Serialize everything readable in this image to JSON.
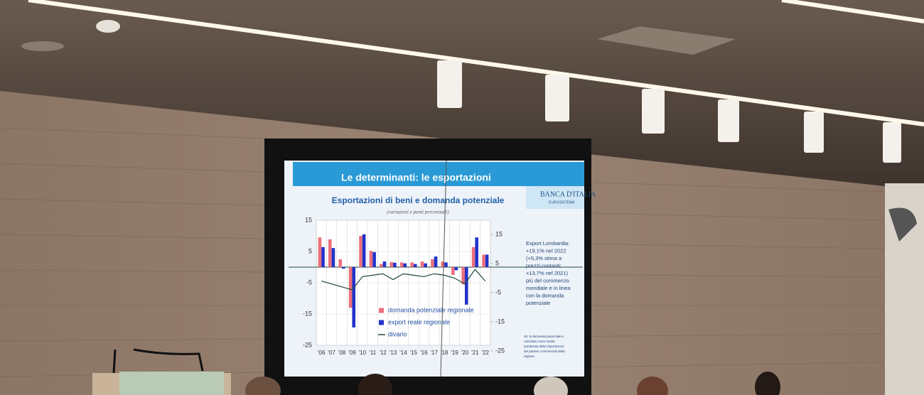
{
  "slide": {
    "header": "Le determinanti: le esportazioni",
    "logo": "BANCA D'ITALIA",
    "logo_sub": "EUROSISTEMA",
    "note_lines": [
      "Export Lombardia:",
      "+19,1% nel 2022",
      "(+5,3% stima a",
      "prezzi costanti;",
      "+13,7% nel 2021)",
      "più del commercio",
      "mondiale e in linea",
      "con la domanda",
      "potenziale"
    ],
    "footnote_lines": [
      "nb: la domanda potenziale è",
      "calcolata come media",
      "ponderata delle importazioni",
      "dei partner commerciali della",
      "regione"
    ]
  },
  "chart_data": {
    "type": "bar",
    "title": "Esportazioni di beni e domanda potenziale",
    "subtitle": "(variazioni e punti percentuali)",
    "categories": [
      "'06",
      "'07",
      "'08",
      "'09",
      "'10",
      "'11",
      "'12",
      "'13",
      "'14",
      "'15",
      "'16",
      "'17",
      "'18",
      "'19",
      "'20",
      "'21",
      "'22"
    ],
    "series": [
      {
        "name": "domanda potenziale regionale",
        "color": "#ec6f7b",
        "values": [
          9.5,
          8.9,
          2.5,
          -13,
          10,
          5.2,
          1,
          1.6,
          1.5,
          1.5,
          1.8,
          2.5,
          1.8,
          -2.5,
          -5.5,
          6.4,
          4
        ]
      },
      {
        "name": "export reale regionale",
        "color": "#2233c8",
        "values": [
          6.4,
          6.1,
          -0.5,
          -19.3,
          10.5,
          4.8,
          1.8,
          1.4,
          1.2,
          1,
          1.2,
          3.4,
          1.5,
          -1,
          -12,
          9.5,
          4
        ]
      },
      {
        "name": "divario",
        "type": "line",
        "axis": "y2",
        "color": "#1e4a3a",
        "values": [
          -1,
          -2,
          -3,
          -4,
          0.5,
          1,
          1.5,
          -0.5,
          1.5,
          1,
          0.5,
          1.5,
          1,
          0,
          -2,
          3,
          -1
        ]
      }
    ],
    "ylim": [
      -25,
      15
    ],
    "yticks": [
      15,
      5,
      -5,
      -15,
      -25
    ],
    "y2lim": [
      -25,
      15
    ],
    "y2ticks": [
      15,
      5,
      -5,
      -15,
      -25
    ],
    "grid": true
  }
}
